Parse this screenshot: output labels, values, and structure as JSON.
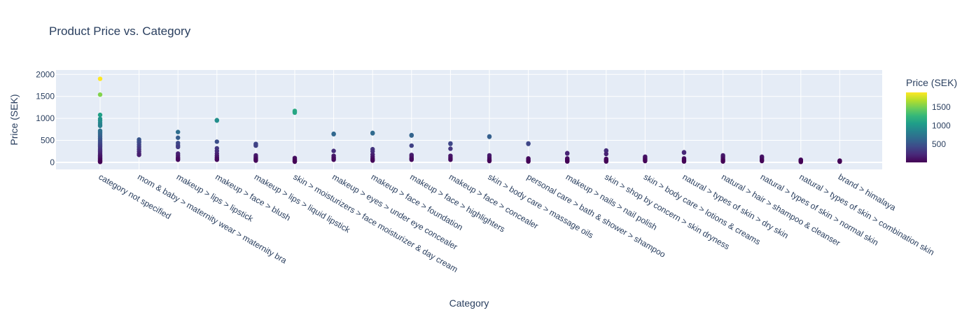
{
  "chart_data": {
    "type": "scatter",
    "title": "Product Price vs. Category",
    "xlabel": "Category",
    "ylabel": "Price (SEK)",
    "ylim": [
      -160,
      2100
    ],
    "yticks": [
      0,
      500,
      1000,
      1500,
      2000
    ],
    "grid": true,
    "colorscale": "Viridis",
    "colorbar": {
      "title": "Price (SEK)",
      "range": [
        10,
        1900
      ],
      "ticks": [
        500,
        1000,
        1500
      ]
    },
    "categories": [
      "category not specified",
      "mom & baby > maternity wear > maternity bra",
      "makeup > lips > lipstick",
      "makeup > face > blush",
      "makeup > lips > liquid lipstick",
      "skin > moisturizers > face moisturizer & day cream",
      "makeup > eyes > under eye concealer",
      "makeup > face > foundation",
      "makeup > face > highlighters",
      "makeup > face > concealer",
      "skin > body care > massage oils",
      "personal care > bath & shower > shampoo",
      "makeup > nails > nail polish",
      "skin > shop by concern > skin dryness",
      "skin > body care > lotions & creams",
      "natural > types of skin > dry skin",
      "natural > hair > shampoo & cleanser",
      "natural > types of skin > normal skin",
      "natural > types of skin > combination skin",
      "brand > himalaya"
    ],
    "values": [
      [
        1900,
        1540,
        1080,
        990,
        950,
        900,
        860,
        830,
        720,
        690,
        660,
        620,
        580,
        540,
        500,
        470,
        440,
        410,
        380,
        350,
        320,
        290,
        260,
        230,
        200,
        170,
        150,
        130,
        110,
        90,
        70,
        50,
        35,
        20,
        10
      ],
      [
        520,
        480,
        450,
        400,
        350,
        300,
        250,
        200,
        170
      ],
      [
        690,
        560,
        440,
        390,
        350,
        200,
        160,
        120,
        90,
        60
      ],
      [
        960,
        950,
        470,
        320,
        260,
        200,
        150,
        110,
        80,
        60
      ],
      [
        420,
        400,
        380,
        160,
        130,
        100,
        80,
        60,
        40
      ],
      [
        1170,
        1150,
        1130,
        100,
        80,
        60,
        40,
        25,
        15
      ],
      [
        650,
        640,
        260,
        150,
        120,
        100,
        80,
        60
      ],
      [
        670,
        660,
        300,
        250,
        180,
        130,
        90,
        60,
        40
      ],
      [
        620,
        610,
        380,
        170,
        140,
        100,
        80,
        60
      ],
      [
        430,
        420,
        310,
        150,
        120,
        90,
        60
      ],
      [
        590,
        580,
        160,
        120,
        80,
        50,
        30
      ],
      [
        430,
        420,
        90,
        70,
        50,
        30,
        20
      ],
      [
        210,
        200,
        90,
        70,
        50,
        30,
        20
      ],
      [
        270,
        260,
        190,
        80,
        60,
        40,
        20
      ],
      [
        130,
        110,
        90,
        70,
        50,
        30
      ],
      [
        230,
        220,
        90,
        60,
        40,
        20
      ],
      [
        160,
        140,
        110,
        80,
        60,
        40,
        20
      ],
      [
        130,
        110,
        80,
        50,
        30
      ],
      [
        60,
        50,
        40,
        30,
        20,
        10
      ],
      [
        40,
        30,
        25,
        20,
        15
      ]
    ]
  }
}
